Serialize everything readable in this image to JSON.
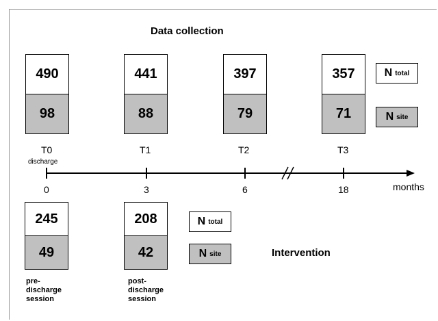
{
  "title": "Data collection",
  "intervention_label": "Intervention",
  "timepoints": [
    {
      "label": "T0",
      "sublabel": "discharge",
      "n_total": "490",
      "n_site": "98"
    },
    {
      "label": "T1",
      "sublabel": "",
      "n_total": "441",
      "n_site": "88"
    },
    {
      "label": "T2",
      "sublabel": "",
      "n_total": "397",
      "n_site": "79"
    },
    {
      "label": "T3",
      "sublabel": "",
      "n_total": "357",
      "n_site": "71"
    }
  ],
  "axis": {
    "ticks": [
      "0",
      "3",
      "6",
      "18"
    ],
    "unit": "months"
  },
  "legend": {
    "n_total_main": "N",
    "n_total_sub": "total",
    "n_site_main": "N",
    "n_site_sub": "site"
  },
  "sessions": [
    {
      "n_total": "245",
      "n_site": "49",
      "label_lines": [
        "pre-",
        "discharge",
        "session"
      ]
    },
    {
      "n_total": "208",
      "n_site": "42",
      "label_lines": [
        "post-",
        "discharge",
        "session"
      ]
    }
  ]
}
